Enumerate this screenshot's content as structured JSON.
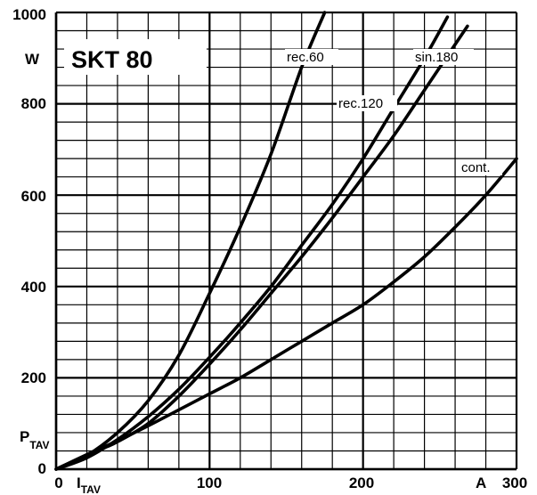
{
  "chart_data": {
    "type": "line",
    "title": "SKT 80",
    "xlabel": "I",
    "xlabel_sub": "TAV",
    "ylabel": "P",
    "ylabel_sub": "TAV",
    "x_unit": "A",
    "y_unit": "W",
    "xlim": [
      0,
      300
    ],
    "ylim": [
      0,
      1000
    ],
    "x_ticks": [
      "0",
      "100",
      "200",
      "300"
    ],
    "y_ticks": [
      "0",
      "200",
      "400",
      "600",
      "800",
      "1000"
    ],
    "grid": true,
    "series": [
      {
        "name": "rec.60",
        "x": [
          0,
          20,
          40,
          60,
          80,
          100,
          120,
          140,
          160,
          175
        ],
        "y": [
          0,
          30,
          80,
          150,
          250,
          385,
          530,
          690,
          880,
          1000
        ]
      },
      {
        "name": "rec.120",
        "x": [
          0,
          20,
          40,
          60,
          80,
          100,
          120,
          140,
          160,
          180,
          200,
          220,
          240,
          255
        ],
        "y": [
          0,
          25,
          65,
          115,
          175,
          245,
          320,
          400,
          490,
          580,
          680,
          790,
          900,
          990
        ]
      },
      {
        "name": "sin.180",
        "x": [
          30,
          40,
          60,
          80,
          100,
          120,
          140,
          160,
          180,
          200,
          220,
          240,
          260,
          268
        ],
        "y": [
          45,
          60,
          100,
          160,
          230,
          305,
          385,
          465,
          550,
          640,
          730,
          830,
          930,
          970
        ]
      },
      {
        "name": "cont.",
        "x": [
          0,
          20,
          40,
          60,
          80,
          100,
          120,
          140,
          160,
          180,
          200,
          220,
          240,
          260,
          280,
          300
        ],
        "y": [
          0,
          32,
          62,
          95,
          130,
          165,
          200,
          240,
          280,
          320,
          360,
          410,
          465,
          530,
          600,
          680
        ]
      }
    ]
  }
}
